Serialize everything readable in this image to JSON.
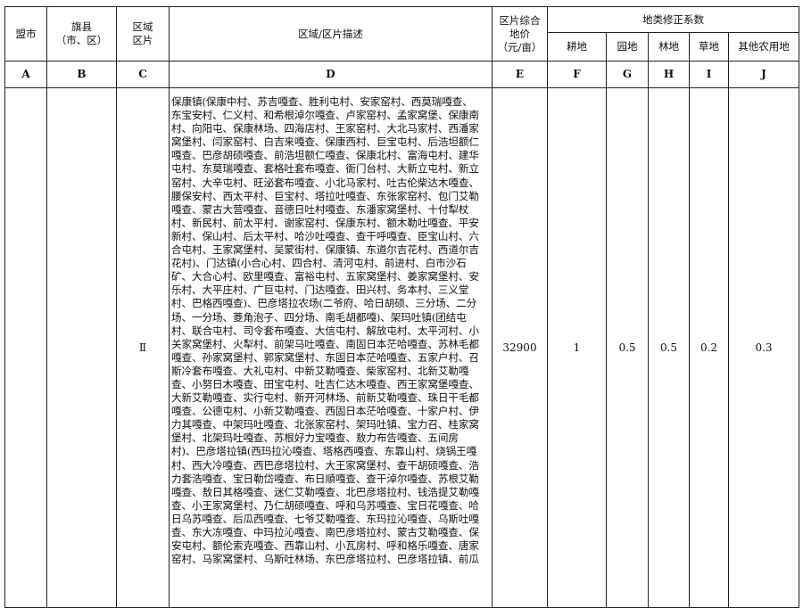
{
  "headers": {
    "league_city": "盟市",
    "county_line1": "旗县",
    "county_line2": "（市、区）",
    "zone_line1": "区域",
    "zone_line2": "区片",
    "description": "区域/区片描述",
    "price_line1": "区片综合",
    "price_line2": "地价",
    "price_line3": "（元/亩）",
    "coefficient_group": "地类修正系数",
    "cultivated": "耕地",
    "garden": "园地",
    "forest": "林地",
    "grass": "草地",
    "other_agri": "其他农用地"
  },
  "letters": [
    "A",
    "B",
    "C",
    "D",
    "E",
    "F",
    "G",
    "H",
    "I",
    "J"
  ],
  "row": {
    "league_city": "",
    "county": "",
    "zone": "Ⅱ",
    "description_lines": [
      "保康镇(保康中村、苏吉嘎查、胜利屯村、安家窑村、西莫瑞嘎查、",
      "东宝安村、仁义村、和希根淖尔嘎查、卢家窑村、孟家窝堡、保康南",
      "村、向阳屯、保康林场、四海店村、王家窑村、大北马家村、西潘家",
      "窝堡村、闫家窑村、白吉来嘎查、保康西村、巨宝屯村、后浩坦额仁",
      "嘎查、巴彦胡硕嘎查、前浩坦额仁嘎查、保康北村、富海屯村、建华",
      "屯村、东莫瑞嘎查、套格吐套布嘎查、衙门台村、大新立屯村、新立",
      "窑村、大辛屯村、旺泌套布嘎查、小北马家村、吐古伦柴达木嘎查、",
      "腰保安村、西太平村、巨宝村、塔拉吐嘎查、东张家窑村、包门艾勒",
      "嘎查、蒙古大营嘎查、音德日吐村嘎查、东潘家窝堡村、十付犁杖",
      "村、新民村、前太平村、谢家窑村、保康东村、额木勒吐嘎查、平安",
      "新村、保山村、后太平村、哈沙吐嘎查、查干呼嘎查、臣宝山村、六",
      "合屯村、王家窝堡村、吴蒙街村、保康镇、东道尔吉花村、西道尔吉",
      "花村)、门达镇(小合心村、四合村、清河屯村、前进村、白市沙石",
      "矿、大合心村、欧里嘎查、富裕屯村、五家窝堡村、姜家窝堡村、安",
      "乐村、大平庄村、广巨屯村、门达嘎查、田兴村、务本村、三义堂",
      "村、巴格西嘎查)、巴彦塔拉农场(二爷府、哈日胡硕、三分场、二分",
      "场、一分场、菱角泡子、四分场、南毛胡都嘎)、架玛吐镇(团结屯",
      "村、联合屯村、司令套布嘎查、大信屯村、解放屯村、太平河村、小",
      "关家窝堡村、火犁村、前架马吐嘎查、南固日本茫哈嘎查、苏林毛都",
      "嘎查、孙家窝堡村、郭家窝堡村、东固日本茫哈嘎查、五家户村、召",
      "斯冷套布嘎查、大礼屯村、中新艾勒嘎查、柴家窑村、北新艾勒嘎",
      "查、小努日木嘎查、田宝屯村、吐吉仁达木嘎查、西王家窝堡嘎查、",
      "大新艾勒嘎查、实行屯村、新开河林场、前新艾勒嘎查、珠日干毛都",
      "嘎查、公德屯村、小新艾勒嘎查、西固日本茫哈嘎查、十家户村、伊",
      "力其嘎查、中架玛吐嘎查、北张家窑村、架玛吐镇、宝力召、桂家窝",
      "堡村、北架玛吐嘎查、苏根好力宝嘎查、敖力布告嘎查、五间房",
      "村)、巴彦塔拉镇(西玛拉沁嘎查、塔格西嘎查、东靠山村、烧锅王嘎",
      "村、西大冷嘎查、西巴彦塔拉村、大王家窝堡村、查干胡硕嘎查、浩",
      "力套浩嘎查、宝日勒岱嘎查、布日順嘎查、查干淖尔嘎查、苏根艾勒",
      "嘎查、敖日其格嘎查、迷仁艾勒嘎查、北巴彦塔拉村、钱浩提艾勒嘎",
      "查、小王家窝堡村、乃仁胡硕嘎查、呼和乌苏嘎查、宝日花嘎查、哈",
      "日乌苏嘎查、后瓜西嘎查、七爷艾勒嘎查、东玛拉沁嘎查、乌斯吐嘎",
      "查、东大冻嘎查、中玛拉沁嘎查、南巴彦塔拉村、蒙古艾勒嘎查、保",
      "安屯村、额伦索克嘎查、西靠山村、小瓦房村、呼和格乐嘎查、唐家",
      "窑村、马家窝堡村、乌斯吐林场、东巴彦塔拉村、巴彦塔拉镇、前瓜"
    ],
    "price": "32900",
    "cultivated": "1",
    "garden": "0.5",
    "forest": "0.5",
    "grass": "0.2",
    "other_agri": "0.3"
  }
}
